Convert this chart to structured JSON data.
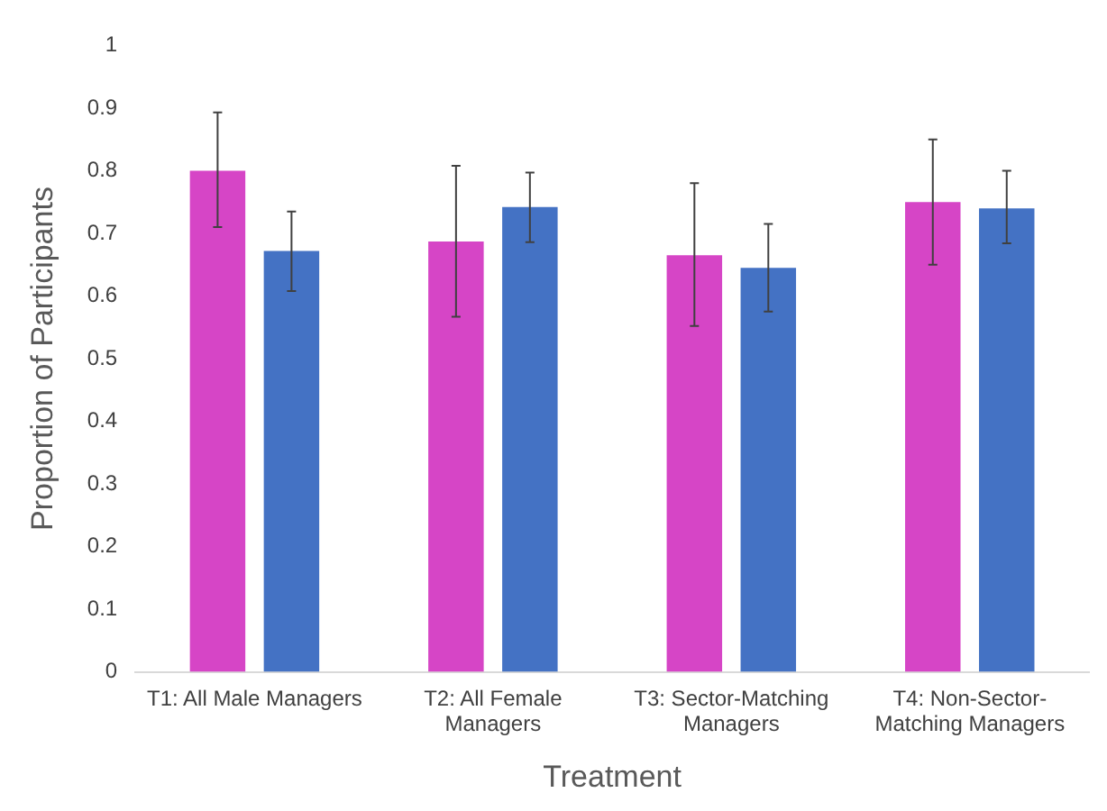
{
  "chart_data": {
    "type": "bar",
    "xlabel": "Treatment",
    "ylabel": "Proportion of Participants",
    "categories": [
      "T1: All Male Managers",
      "T2: All Female Managers",
      "T3: Sector-Matching Managers",
      "T4: Non-Sector-Matching Managers"
    ],
    "series": [
      {
        "color": "#d645c6",
        "values": [
          0.8,
          0.687,
          0.665,
          0.75
        ],
        "errors": [
          [
            0.71,
            0.893
          ],
          [
            0.567,
            0.808
          ],
          [
            0.552,
            0.78
          ],
          [
            0.65,
            0.85
          ]
        ]
      },
      {
        "color": "#4472c4",
        "values": [
          0.672,
          0.742,
          0.645,
          0.74
        ],
        "errors": [
          [
            0.608,
            0.735
          ],
          [
            0.686,
            0.797
          ],
          [
            0.575,
            0.715
          ],
          [
            0.684,
            0.8
          ]
        ]
      }
    ],
    "ylim": [
      0,
      1
    ],
    "yticks": [
      0,
      0.1,
      0.2,
      0.3,
      0.4,
      0.5,
      0.6,
      0.7,
      0.8,
      0.9,
      1
    ],
    "grid": false,
    "legend": false
  }
}
